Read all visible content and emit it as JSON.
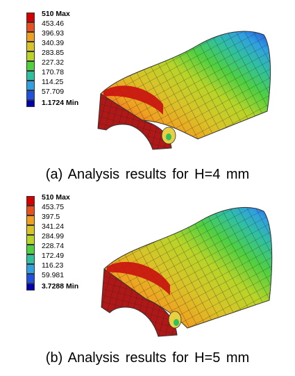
{
  "panels": [
    {
      "caption": "(a)  Analysis  results  for  H=4  mm",
      "legend": [
        "510 Max",
        "453.46",
        "396.93",
        "340.39",
        "283.85",
        "227.32",
        "170.78",
        "114.25",
        "57.709",
        "1.1724 Min"
      ]
    },
    {
      "caption": "(b)  Analysis  results  for  H=5  mm",
      "legend": [
        "510 Max",
        "453.75",
        "397.5",
        "341.24",
        "284.99",
        "228.74",
        "172.49",
        "116.23",
        "59.981",
        "3.7288 Min"
      ]
    }
  ],
  "colors": {
    "scale": [
      "#d40000",
      "#e8501e",
      "#f0a020",
      "#d8c428",
      "#b8d428",
      "#50d040",
      "#30c0a0",
      "#30a0e0",
      "#2050e0",
      "#0000b0"
    ]
  }
}
